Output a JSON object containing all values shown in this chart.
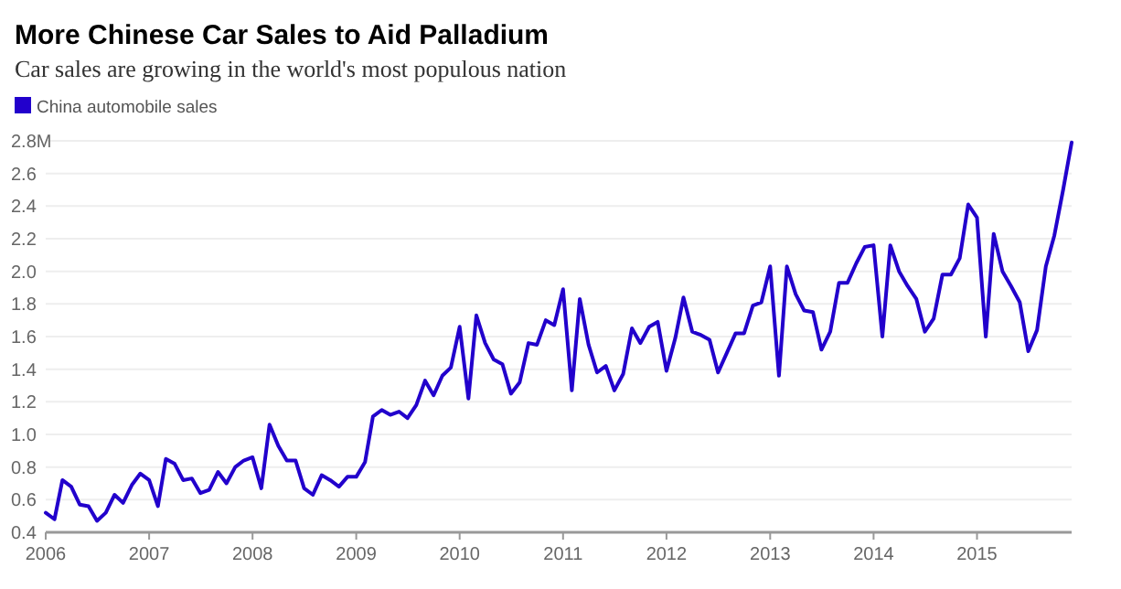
{
  "chart_data": {
    "type": "line",
    "title": "More Chinese Car Sales to Aid Palladium",
    "subtitle": "Car sales are growing in the world's most populous nation",
    "x": [
      "2006-01",
      "2006-02",
      "2006-03",
      "2006-04",
      "2006-05",
      "2006-06",
      "2006-07",
      "2006-08",
      "2006-09",
      "2006-10",
      "2006-11",
      "2006-12",
      "2007-01",
      "2007-02",
      "2007-03",
      "2007-04",
      "2007-05",
      "2007-06",
      "2007-07",
      "2007-08",
      "2007-09",
      "2007-10",
      "2007-11",
      "2007-12",
      "2008-01",
      "2008-02",
      "2008-03",
      "2008-04",
      "2008-05",
      "2008-06",
      "2008-07",
      "2008-08",
      "2008-09",
      "2008-10",
      "2008-11",
      "2008-12",
      "2009-01",
      "2009-02",
      "2009-03",
      "2009-04",
      "2009-05",
      "2009-06",
      "2009-07",
      "2009-08",
      "2009-09",
      "2009-10",
      "2009-11",
      "2009-12",
      "2010-01",
      "2010-02",
      "2010-03",
      "2010-04",
      "2010-05",
      "2010-06",
      "2010-07",
      "2010-08",
      "2010-09",
      "2010-10",
      "2010-11",
      "2010-12",
      "2011-01",
      "2011-02",
      "2011-03",
      "2011-04",
      "2011-05",
      "2011-06",
      "2011-07",
      "2011-08",
      "2011-09",
      "2011-10",
      "2011-11",
      "2011-12",
      "2012-01",
      "2012-02",
      "2012-03",
      "2012-04",
      "2012-05",
      "2012-06",
      "2012-07",
      "2012-08",
      "2012-09",
      "2012-10",
      "2012-11",
      "2012-12",
      "2013-01",
      "2013-02",
      "2013-03",
      "2013-04",
      "2013-05",
      "2013-06",
      "2013-07",
      "2013-08",
      "2013-09",
      "2013-10",
      "2013-11",
      "2013-12",
      "2014-01",
      "2014-02",
      "2014-03",
      "2014-04",
      "2014-05",
      "2014-06",
      "2014-07",
      "2014-08",
      "2014-09",
      "2014-10",
      "2014-11",
      "2014-12",
      "2015-01",
      "2015-02",
      "2015-03",
      "2015-04",
      "2015-05",
      "2015-06",
      "2015-07",
      "2015-08",
      "2015-09",
      "2015-10",
      "2015-11",
      "2015-12"
    ],
    "series": [
      {
        "name": "China automobile sales",
        "color": "#2200cc",
        "values": [
          0.52,
          0.48,
          0.72,
          0.68,
          0.57,
          0.56,
          0.47,
          0.52,
          0.63,
          0.58,
          0.69,
          0.76,
          0.72,
          0.56,
          0.85,
          0.82,
          0.72,
          0.73,
          0.64,
          0.66,
          0.77,
          0.7,
          0.8,
          0.84,
          0.86,
          0.67,
          1.06,
          0.93,
          0.84,
          0.84,
          0.67,
          0.63,
          0.75,
          0.72,
          0.68,
          0.74,
          0.74,
          0.83,
          1.11,
          1.15,
          1.12,
          1.14,
          1.1,
          1.18,
          1.33,
          1.24,
          1.36,
          1.41,
          1.66,
          1.22,
          1.73,
          1.56,
          1.46,
          1.43,
          1.25,
          1.32,
          1.56,
          1.55,
          1.7,
          1.67,
          1.89,
          1.27,
          1.83,
          1.55,
          1.38,
          1.42,
          1.27,
          1.37,
          1.65,
          1.56,
          1.66,
          1.69,
          1.39,
          1.59,
          1.84,
          1.63,
          1.61,
          1.58,
          1.38,
          1.5,
          1.62,
          1.62,
          1.79,
          1.81,
          2.03,
          1.36,
          2.03,
          1.86,
          1.76,
          1.75,
          1.52,
          1.63,
          1.93,
          1.93,
          2.05,
          2.15,
          2.16,
          1.6,
          2.16,
          2.0,
          1.91,
          1.83,
          1.63,
          1.71,
          1.98,
          1.98,
          2.08,
          2.41,
          2.33,
          1.6,
          2.23,
          2.0,
          1.91,
          1.81,
          1.51,
          1.64,
          2.03,
          2.22,
          2.5,
          2.79
        ]
      }
    ],
    "xlim": [
      "2006-01",
      "2015-12"
    ],
    "xticks": [
      "2006",
      "2007",
      "2008",
      "2009",
      "2010",
      "2011",
      "2012",
      "2013",
      "2014",
      "2015"
    ],
    "ylim": [
      0.4,
      2.8
    ],
    "yticks": [
      0.4,
      0.6,
      0.8,
      {
        "value": 1,
        "label": "1.0"
      },
      1.2,
      1.4,
      1.6,
      1.8,
      {
        "value": 2,
        "label": "2.0"
      },
      2.2,
      2.4,
      2.6,
      {
        "value": 2.8,
        "label": "2.8M"
      }
    ],
    "grid": "y",
    "legend": "top left",
    "marker": "none",
    "line_style": "solid"
  }
}
